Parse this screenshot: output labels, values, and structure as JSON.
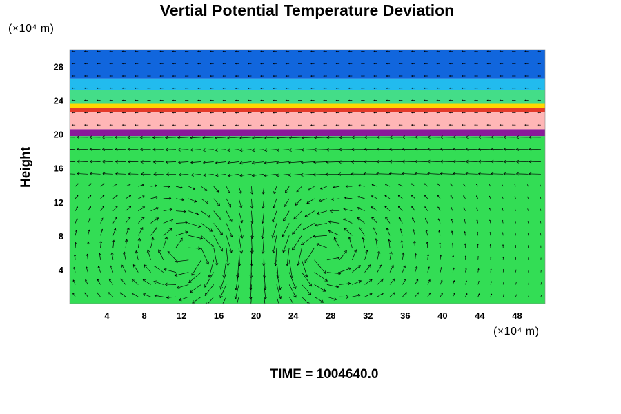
{
  "chart_data": {
    "type": "heatmap",
    "title": "Vertial Potential Temperature Deviation",
    "ylabel": "Height",
    "x_unit": "(×10⁴ m)",
    "y_unit": "(×10⁴ m)",
    "footer": "TIME = 1004640.0",
    "xlim": [
      0,
      51
    ],
    "ylim": [
      0,
      30
    ],
    "x_ticks": [
      4,
      8,
      12,
      16,
      20,
      24,
      28,
      32,
      36,
      40,
      44,
      48
    ],
    "y_ticks": [
      4,
      8,
      12,
      16,
      20,
      24,
      28
    ],
    "layers": [
      {
        "from": 0,
        "to": 19.8,
        "color": "#33dd55"
      },
      {
        "from": 19.8,
        "to": 20.6,
        "color": "#8a1a9a"
      },
      {
        "from": 20.6,
        "to": 22.6,
        "color": "#ffb6b6"
      },
      {
        "from": 22.6,
        "to": 23.1,
        "color": "#e43a2a"
      },
      {
        "from": 23.1,
        "to": 23.6,
        "color": "#ffd700"
      },
      {
        "from": 23.6,
        "to": 25.2,
        "color": "#44dd88"
      },
      {
        "from": 25.2,
        "to": 26.6,
        "color": "#22bbee"
      },
      {
        "from": 26.6,
        "to": 30,
        "color": "#1166dd"
      }
    ],
    "vortex_centers": [
      {
        "x": 13,
        "y": 6,
        "rotation": "clockwise"
      },
      {
        "x": 27,
        "y": 6,
        "rotation": "counterclockwise"
      }
    ],
    "vectors": true
  }
}
